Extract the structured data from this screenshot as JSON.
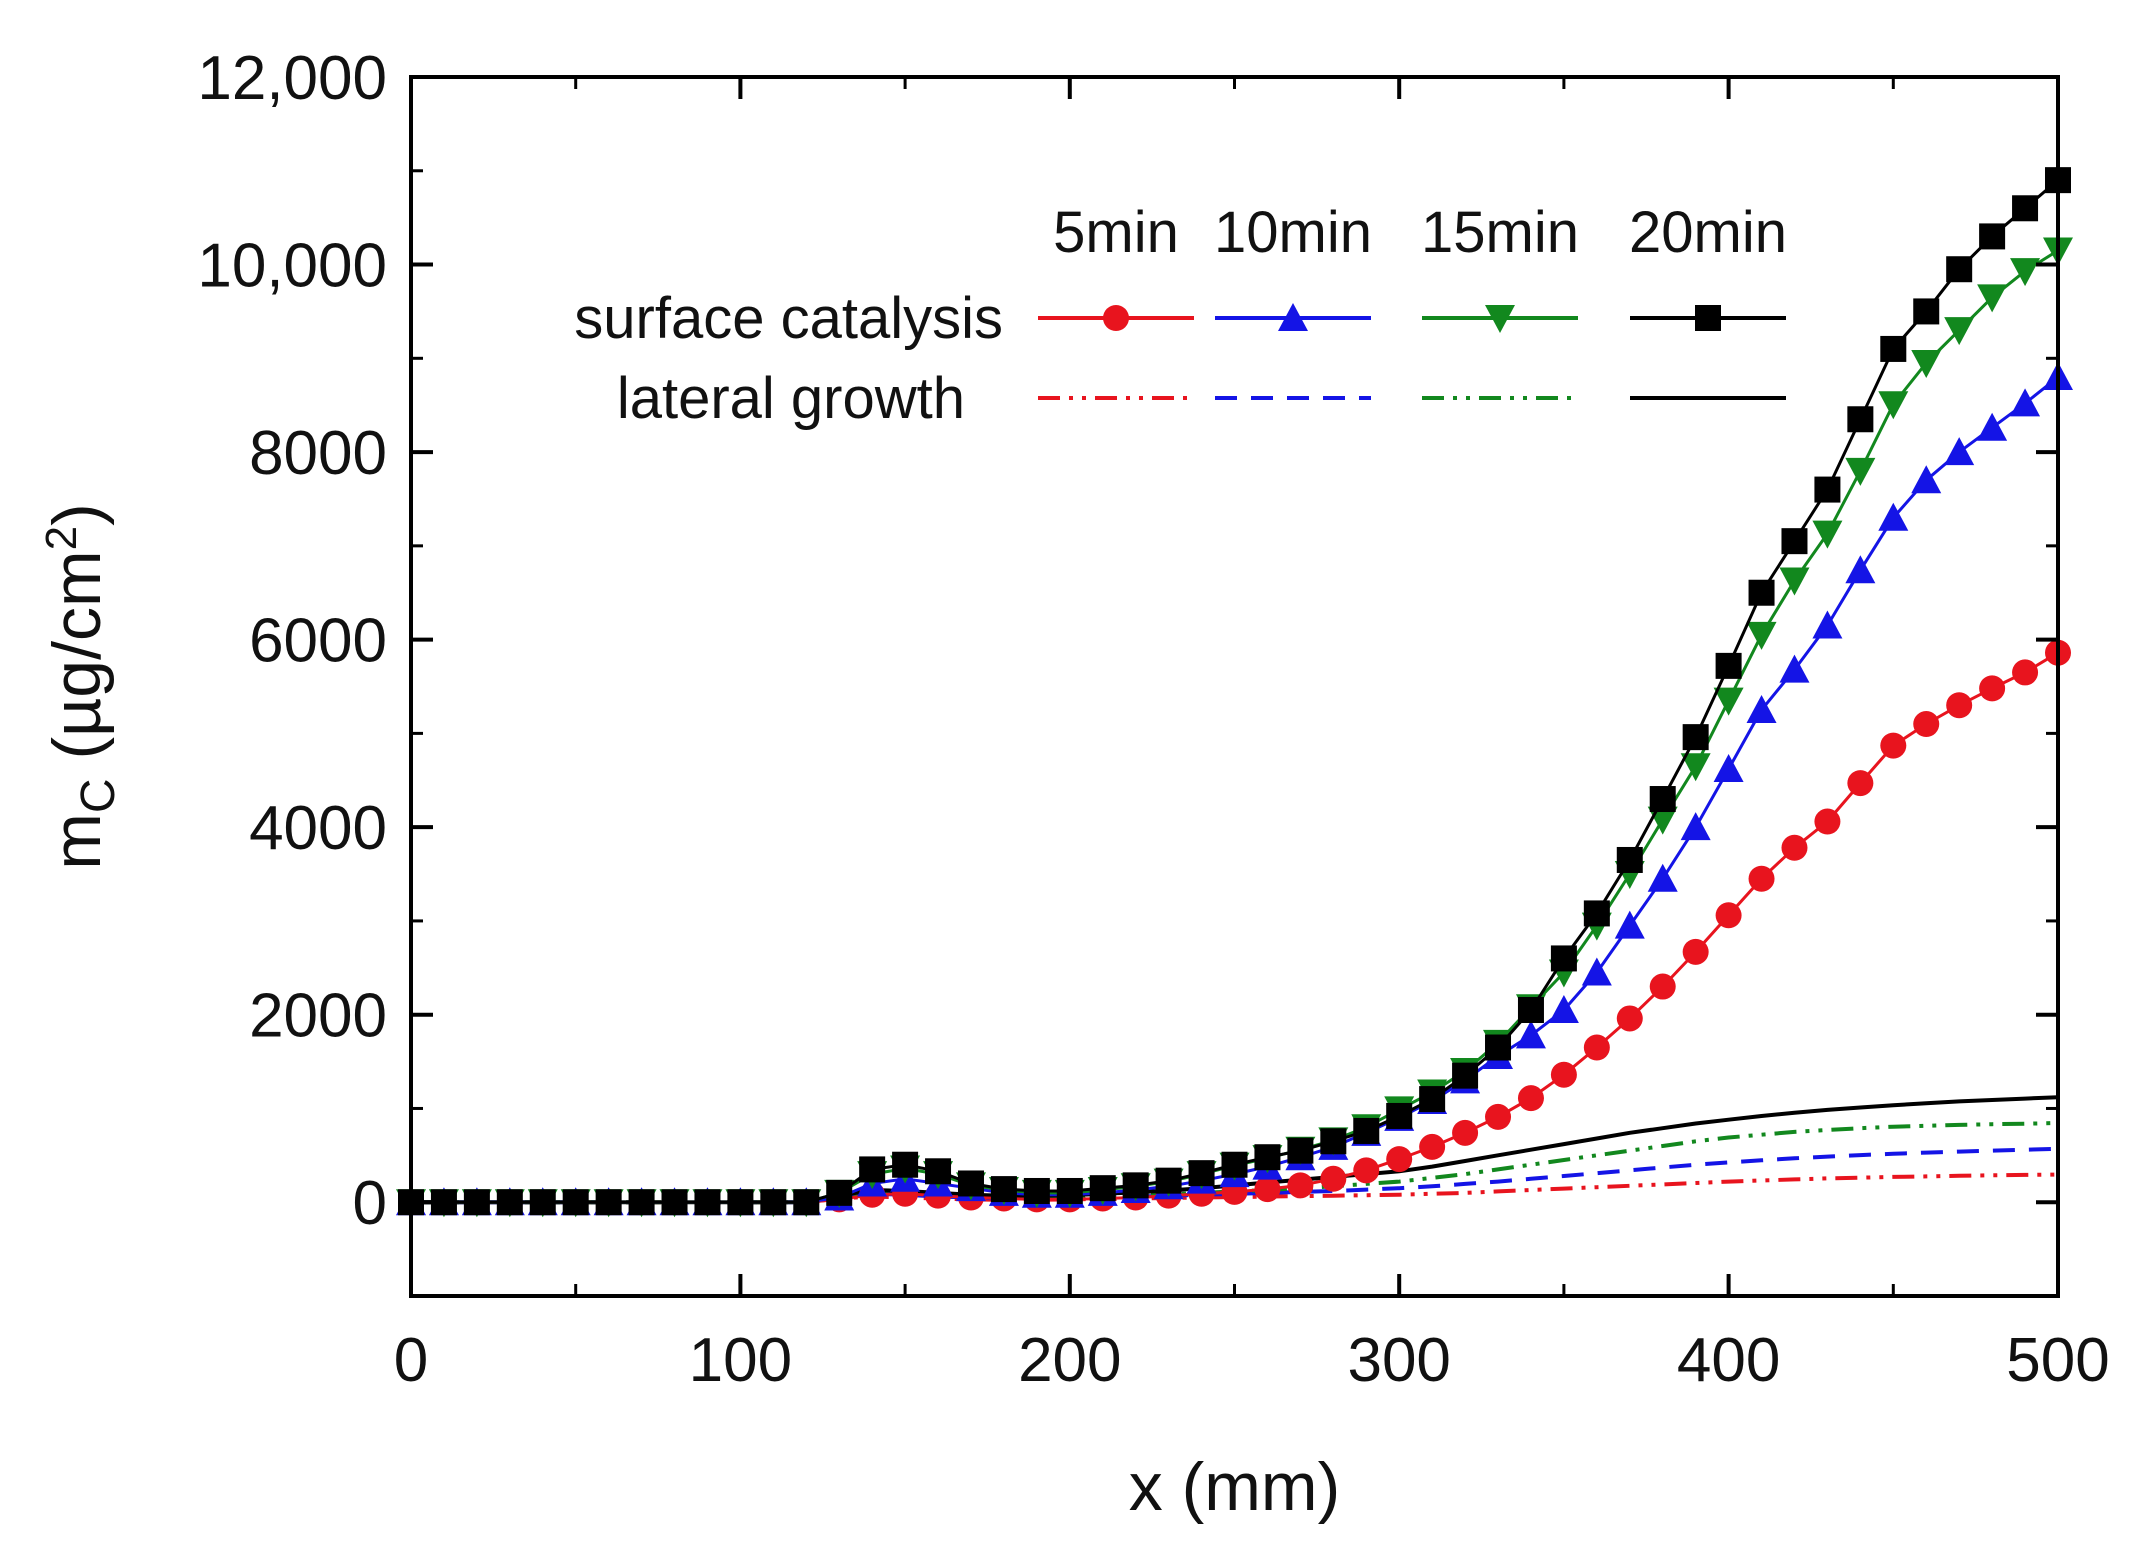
{
  "chart_data": {
    "type": "line",
    "title": "",
    "xlabel": "x (mm)",
    "ylabel": {
      "symbol": "m",
      "subscript": "C",
      "units_prefix": " (µg/cm",
      "superscript": "2",
      "units_suffix": ")"
    },
    "xlim": [
      0,
      500
    ],
    "ylim": [
      -1000,
      12000
    ],
    "x_ticks": [
      0,
      100,
      200,
      300,
      400,
      500
    ],
    "x_tick_labels": [
      "0",
      "100",
      "200",
      "300",
      "400",
      "500"
    ],
    "y_ticks": [
      0,
      2000,
      4000,
      6000,
      8000,
      10000,
      12000
    ],
    "y_tick_labels": [
      "0",
      "2000",
      "4000",
      "6000",
      "8000",
      "10,000",
      "12,000"
    ],
    "legend": {
      "placement": "top-right",
      "column_headers": [
        "5min",
        "10min",
        "15min",
        "20min"
      ],
      "row_labels": [
        "surface catalysis",
        "lateral growth"
      ]
    },
    "x": [
      0,
      10,
      20,
      30,
      40,
      50,
      60,
      70,
      80,
      90,
      100,
      110,
      120,
      130,
      140,
      150,
      160,
      170,
      180,
      190,
      200,
      210,
      220,
      230,
      240,
      250,
      260,
      270,
      280,
      290,
      300,
      310,
      320,
      330,
      340,
      350,
      360,
      370,
      380,
      390,
      400,
      410,
      420,
      430,
      440,
      450,
      460,
      470,
      480,
      490,
      500
    ],
    "series": [
      {
        "name": "surface catalysis 5min",
        "group": "surface catalysis",
        "time": "5min",
        "color": "#e8141e",
        "marker": "circle",
        "dash": "solid",
        "values": [
          0,
          0,
          0,
          0,
          0,
          0,
          0,
          0,
          0,
          0,
          0,
          0,
          0,
          30,
          80,
          90,
          70,
          50,
          40,
          30,
          30,
          40,
          50,
          70,
          90,
          110,
          140,
          180,
          250,
          340,
          460,
          590,
          740,
          910,
          1110,
          1360,
          1650,
          1960,
          2300,
          2670,
          3060,
          3450,
          3780,
          4060,
          4470,
          4870,
          5100,
          5300,
          5480,
          5650,
          5860
        ]
      },
      {
        "name": "surface catalysis 10min",
        "group": "surface catalysis",
        "time": "10min",
        "color": "#1414e6",
        "marker": "triangle-up",
        "dash": "solid",
        "values": [
          0,
          0,
          0,
          0,
          0,
          0,
          0,
          0,
          0,
          0,
          0,
          0,
          0,
          50,
          200,
          250,
          200,
          150,
          100,
          80,
          80,
          100,
          130,
          170,
          230,
          300,
          380,
          480,
          590,
          740,
          900,
          1080,
          1300,
          1560,
          1780,
          2050,
          2450,
          2950,
          3450,
          4000,
          4620,
          5250,
          5680,
          6150,
          6740,
          7300,
          7700,
          8000,
          8260,
          8520,
          8800
        ]
      },
      {
        "name": "surface catalysis 15min",
        "group": "surface catalysis",
        "time": "15min",
        "color": "#12881e",
        "marker": "triangle-down",
        "dash": "solid",
        "values": [
          0,
          0,
          0,
          0,
          0,
          0,
          0,
          0,
          0,
          0,
          0,
          0,
          0,
          100,
          300,
          360,
          300,
          180,
          130,
          100,
          100,
          130,
          170,
          220,
          300,
          390,
          470,
          560,
          660,
          800,
          990,
          1170,
          1400,
          1700,
          2080,
          2450,
          2950,
          3500,
          4080,
          4650,
          5350,
          6050,
          6630,
          7130,
          7800,
          8510,
          8950,
          9300,
          9650,
          9930,
          10150
        ]
      },
      {
        "name": "surface catalysis 20min",
        "group": "surface catalysis",
        "time": "20min",
        "color": "#000000",
        "marker": "square",
        "dash": "solid",
        "values": [
          0,
          0,
          0,
          0,
          0,
          0,
          0,
          0,
          0,
          0,
          0,
          0,
          0,
          100,
          350,
          400,
          330,
          200,
          140,
          120,
          120,
          150,
          180,
          230,
          310,
          400,
          480,
          550,
          650,
          760,
          920,
          1100,
          1350,
          1650,
          2050,
          2600,
          3080,
          3650,
          4300,
          4960,
          5720,
          6500,
          7050,
          7600,
          8350,
          9100,
          9500,
          9950,
          10300,
          10600,
          10900
        ]
      },
      {
        "name": "lateral growth 5min",
        "group": "lateral growth",
        "time": "5min",
        "color": "#e8141e",
        "marker": "none",
        "dash": "dash-dot-dot",
        "values": [
          0,
          0,
          0,
          0,
          0,
          0,
          0,
          0,
          0,
          0,
          0,
          0,
          0,
          40,
          60,
          50,
          40,
          30,
          25,
          25,
          30,
          35,
          40,
          45,
          50,
          55,
          60,
          65,
          70,
          75,
          80,
          90,
          100,
          115,
          130,
          145,
          160,
          175,
          190,
          205,
          220,
          232,
          244,
          254,
          262,
          270,
          276,
          282,
          287,
          291,
          295
        ]
      },
      {
        "name": "lateral growth 10min",
        "group": "lateral growth",
        "time": "10min",
        "color": "#1414e6",
        "marker": "none",
        "dash": "dash",
        "values": [
          0,
          0,
          0,
          0,
          0,
          0,
          0,
          0,
          0,
          0,
          0,
          0,
          0,
          50,
          90,
          80,
          60,
          50,
          40,
          40,
          45,
          50,
          60,
          70,
          80,
          90,
          100,
          110,
          120,
          135,
          150,
          170,
          195,
          220,
          250,
          280,
          310,
          340,
          370,
          400,
          425,
          447,
          468,
          487,
          503,
          517,
          529,
          540,
          550,
          560,
          570
        ]
      },
      {
        "name": "lateral growth 15min",
        "group": "lateral growth",
        "time": "15min",
        "color": "#12881e",
        "marker": "none",
        "dash": "dash-dot-dot",
        "values": [
          0,
          0,
          0,
          0,
          0,
          0,
          0,
          0,
          0,
          0,
          0,
          0,
          0,
          60,
          110,
          100,
          80,
          60,
          50,
          50,
          55,
          65,
          75,
          85,
          100,
          115,
          130,
          150,
          170,
          195,
          220,
          260,
          300,
          350,
          400,
          450,
          500,
          550,
          600,
          650,
          690,
          720,
          750,
          770,
          790,
          805,
          815,
          825,
          832,
          838,
          845
        ]
      },
      {
        "name": "lateral growth 20min",
        "group": "lateral growth",
        "time": "20min",
        "color": "#000000",
        "marker": "none",
        "dash": "solid",
        "values": [
          0,
          0,
          0,
          0,
          0,
          0,
          0,
          0,
          0,
          0,
          0,
          0,
          0,
          70,
          130,
          120,
          100,
          80,
          70,
          70,
          75,
          90,
          105,
          125,
          150,
          180,
          210,
          240,
          270,
          300,
          330,
          380,
          440,
          500,
          560,
          620,
          680,
          740,
          790,
          840,
          880,
          920,
          955,
          985,
          1010,
          1035,
          1055,
          1075,
          1090,
          1105,
          1120
        ]
      }
    ]
  }
}
